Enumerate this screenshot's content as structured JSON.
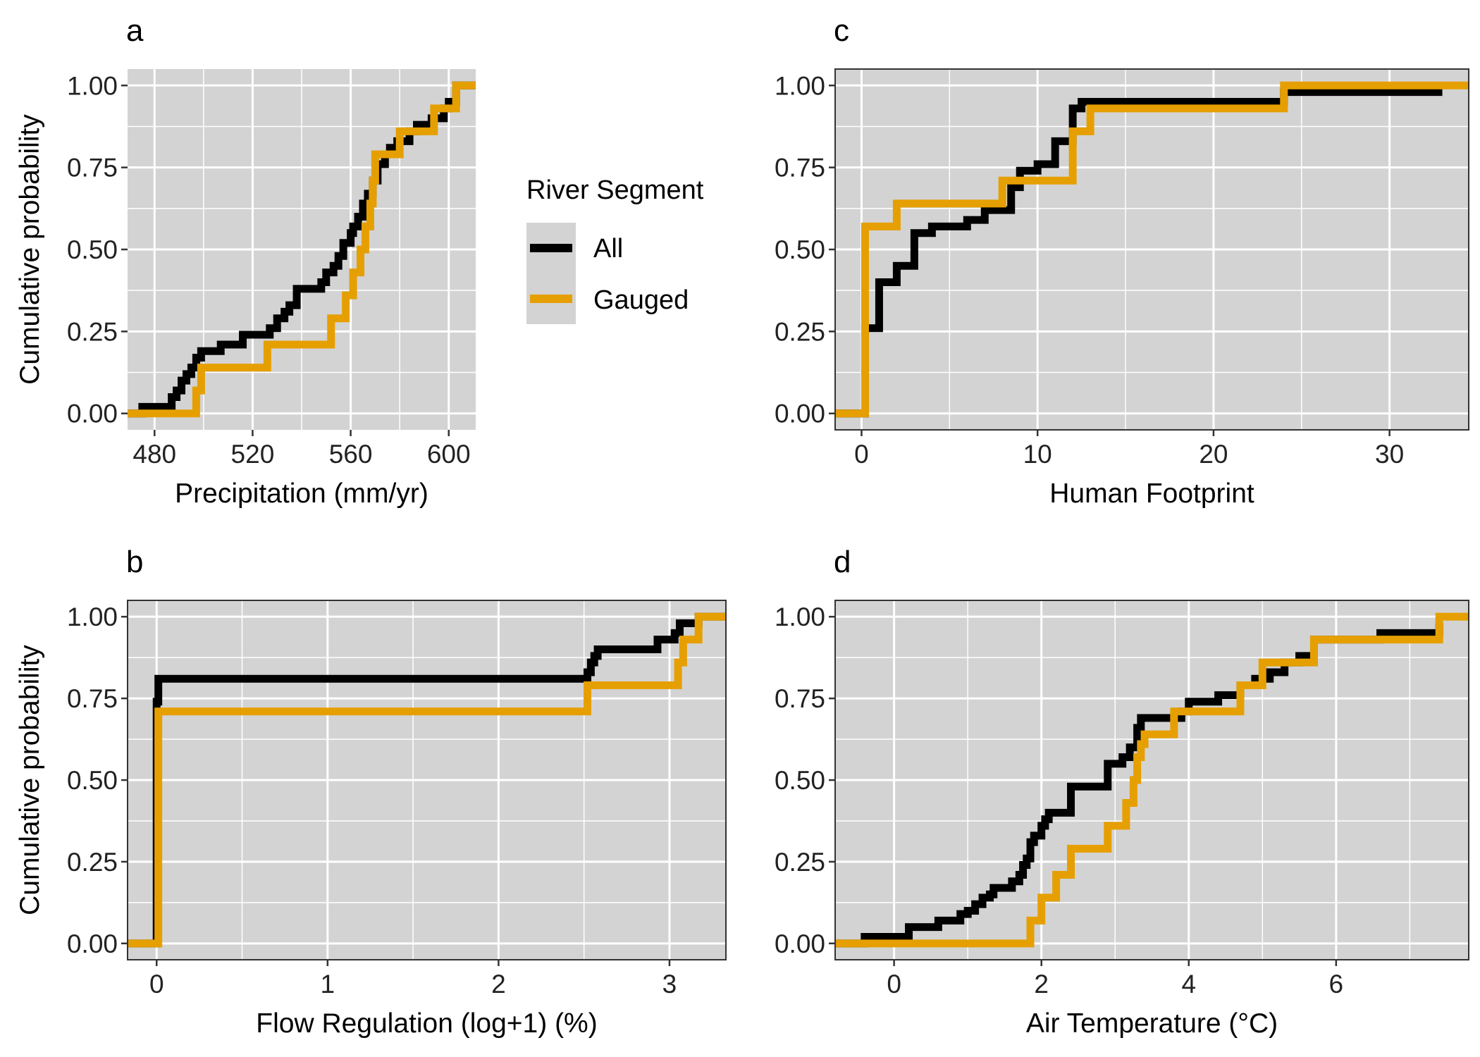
{
  "colors": {
    "all": "#000000",
    "gauged": "#E69F00",
    "panel_bg": "#D3D3D3",
    "grid": "#FFFFFF"
  },
  "legend": {
    "title": "River Segment",
    "placement": "right of panel a",
    "items": [
      {
        "label": "All",
        "color": "#000000"
      },
      {
        "label": "Gauged",
        "color": "#E69F00"
      }
    ]
  },
  "chart_data": [
    {
      "type": "line",
      "step": true,
      "tag": "a",
      "xlabel": "Precipitation (mm/yr)",
      "ylabel": "Cumulative probability",
      "xlim": [
        469,
        611
      ],
      "ylim": [
        -0.05,
        1.05
      ],
      "xticks": [
        "480",
        "520",
        "560",
        "600"
      ],
      "xtick_values": [
        480,
        520,
        560,
        600
      ],
      "yticks": [
        "0.00",
        "0.25",
        "0.50",
        "0.75",
        "1.00"
      ],
      "ytick_values": [
        0,
        0.25,
        0.5,
        0.75,
        1
      ],
      "grid": true,
      "border": false,
      "series": [
        {
          "name": "All",
          "color": "#000000",
          "x": [
            469,
            475,
            487,
            489,
            491,
            493,
            495,
            497,
            499,
            507,
            514,
            516,
            521,
            527,
            530,
            533,
            535,
            538,
            548,
            550,
            553,
            555,
            557,
            560,
            561,
            563,
            565,
            567,
            569,
            571,
            574,
            576,
            579,
            584,
            587,
            593,
            598,
            600,
            603,
            611
          ],
          "y": [
            0,
            0.02,
            0.05,
            0.07,
            0.1,
            0.12,
            0.14,
            0.17,
            0.19,
            0.21,
            0.21,
            0.24,
            0.24,
            0.26,
            0.29,
            0.31,
            0.33,
            0.38,
            0.4,
            0.43,
            0.45,
            0.48,
            0.52,
            0.55,
            0.57,
            0.6,
            0.64,
            0.67,
            0.71,
            0.76,
            0.79,
            0.81,
            0.83,
            0.86,
            0.88,
            0.9,
            0.93,
            0.95,
            1.0,
            1.0
          ]
        },
        {
          "name": "Gauged",
          "color": "#E69F00",
          "x": [
            469,
            497,
            499,
            526,
            552,
            558,
            561,
            564,
            566,
            568,
            569,
            570,
            580,
            594,
            603,
            611
          ],
          "y": [
            0,
            0.07,
            0.14,
            0.21,
            0.29,
            0.36,
            0.43,
            0.5,
            0.57,
            0.64,
            0.71,
            0.79,
            0.86,
            0.93,
            1.0,
            1.0
          ]
        }
      ]
    },
    {
      "type": "line",
      "step": true,
      "tag": "c",
      "xlabel": "Human Footprint",
      "ylabel": "",
      "xlim": [
        -1.5,
        34.5
      ],
      "ylim": [
        -0.05,
        1.05
      ],
      "xticks": [
        "0",
        "10",
        "20",
        "30"
      ],
      "xtick_values": [
        0,
        10,
        20,
        30
      ],
      "yticks": [
        "0.00",
        "0.25",
        "0.50",
        "0.75",
        "1.00"
      ],
      "ytick_values": [
        0,
        0.25,
        0.5,
        0.75,
        1
      ],
      "grid": true,
      "border": true,
      "series": [
        {
          "name": "All",
          "color": "#000000",
          "x": [
            -1.5,
            0.2,
            1.0,
            2.0,
            3.0,
            4.0,
            6.0,
            7.0,
            8.5,
            9.0,
            10.0,
            11.0,
            12.0,
            12.5,
            13.0,
            24.0,
            33.0
          ],
          "y": [
            0,
            0.26,
            0.4,
            0.45,
            0.55,
            0.57,
            0.59,
            0.62,
            0.69,
            0.74,
            0.76,
            0.83,
            0.93,
            0.95,
            0.95,
            0.98,
            0.98
          ]
        },
        {
          "name": "Gauged",
          "color": "#E69F00",
          "x": [
            -1.5,
            0.2,
            2.0,
            8.0,
            12.0,
            13.0,
            24.0,
            34.5
          ],
          "y": [
            0,
            0.57,
            0.64,
            0.71,
            0.86,
            0.93,
            1.0,
            1.0
          ]
        }
      ]
    },
    {
      "type": "line",
      "step": true,
      "tag": "b",
      "xlabel": "Flow Regulation (log+1) (%)",
      "ylabel": "Cumulative probability",
      "xlim": [
        -0.17,
        3.33
      ],
      "ylim": [
        -0.05,
        1.05
      ],
      "xticks": [
        "0",
        "1",
        "2",
        "3"
      ],
      "xtick_values": [
        0,
        1,
        2,
        3
      ],
      "yticks": [
        "0.00",
        "0.25",
        "0.50",
        "0.75",
        "1.00"
      ],
      "ytick_values": [
        0,
        0.25,
        0.5,
        0.75,
        1
      ],
      "grid": true,
      "border": true,
      "series": [
        {
          "name": "All",
          "color": "#000000",
          "x": [
            -0.17,
            0.0,
            0.01,
            2.52,
            2.54,
            2.56,
            2.58,
            2.6,
            2.9,
            2.93,
            3.03,
            3.06,
            3.08,
            3.1,
            3.17,
            3.33
          ],
          "y": [
            0,
            0.74,
            0.81,
            0.83,
            0.86,
            0.88,
            0.9,
            0.9,
            0.9,
            0.93,
            0.95,
            0.98,
            0.98,
            0.98,
            1.0,
            1.0
          ]
        },
        {
          "name": "Gauged",
          "color": "#E69F00",
          "x": [
            -0.17,
            0.01,
            2.52,
            3.05,
            3.08,
            3.17,
            3.33
          ],
          "y": [
            0,
            0.71,
            0.79,
            0.86,
            0.93,
            1.0,
            1.0
          ]
        }
      ]
    },
    {
      "type": "line",
      "step": true,
      "tag": "d",
      "xlabel": "Air Temperature (°C)",
      "ylabel": "",
      "xlim": [
        -0.8,
        7.8
      ],
      "ylim": [
        -0.05,
        1.05
      ],
      "xticks": [
        "0",
        "2",
        "4",
        "6"
      ],
      "xtick_values": [
        0,
        2,
        4,
        6
      ],
      "yticks": [
        "0.00",
        "0.25",
        "0.50",
        "0.75",
        "1.00"
      ],
      "ytick_values": [
        0,
        0.25,
        0.5,
        0.75,
        1
      ],
      "grid": true,
      "border": true,
      "series": [
        {
          "name": "All",
          "color": "#000000",
          "x": [
            -0.8,
            -0.4,
            0.2,
            0.6,
            0.9,
            1.0,
            1.1,
            1.2,
            1.3,
            1.35,
            1.6,
            1.7,
            1.75,
            1.8,
            1.85,
            1.9,
            2.0,
            2.05,
            2.1,
            2.4,
            2.6,
            2.9,
            3.1,
            3.2,
            3.3,
            3.35,
            3.9,
            4.0,
            4.4,
            4.7,
            4.9,
            5.1,
            5.3,
            5.5,
            5.7,
            6.6,
            7.4
          ],
          "y": [
            0,
            0.02,
            0.05,
            0.07,
            0.09,
            0.1,
            0.12,
            0.14,
            0.15,
            0.17,
            0.19,
            0.21,
            0.24,
            0.26,
            0.31,
            0.33,
            0.36,
            0.38,
            0.4,
            0.48,
            0.48,
            0.55,
            0.57,
            0.6,
            0.66,
            0.69,
            0.71,
            0.74,
            0.76,
            0.79,
            0.81,
            0.83,
            0.86,
            0.88,
            0.93,
            0.95,
            0.98
          ]
        },
        {
          "name": "Gauged",
          "color": "#E69F00",
          "x": [
            -0.8,
            1.85,
            2.0,
            2.2,
            2.4,
            2.9,
            3.15,
            3.25,
            3.3,
            3.35,
            3.4,
            3.8,
            4.7,
            5.0,
            5.7,
            7.4,
            7.8
          ],
          "y": [
            0,
            0.07,
            0.14,
            0.21,
            0.29,
            0.36,
            0.43,
            0.5,
            0.57,
            0.61,
            0.64,
            0.71,
            0.79,
            0.86,
            0.93,
            1.0,
            1.0
          ]
        }
      ]
    }
  ]
}
